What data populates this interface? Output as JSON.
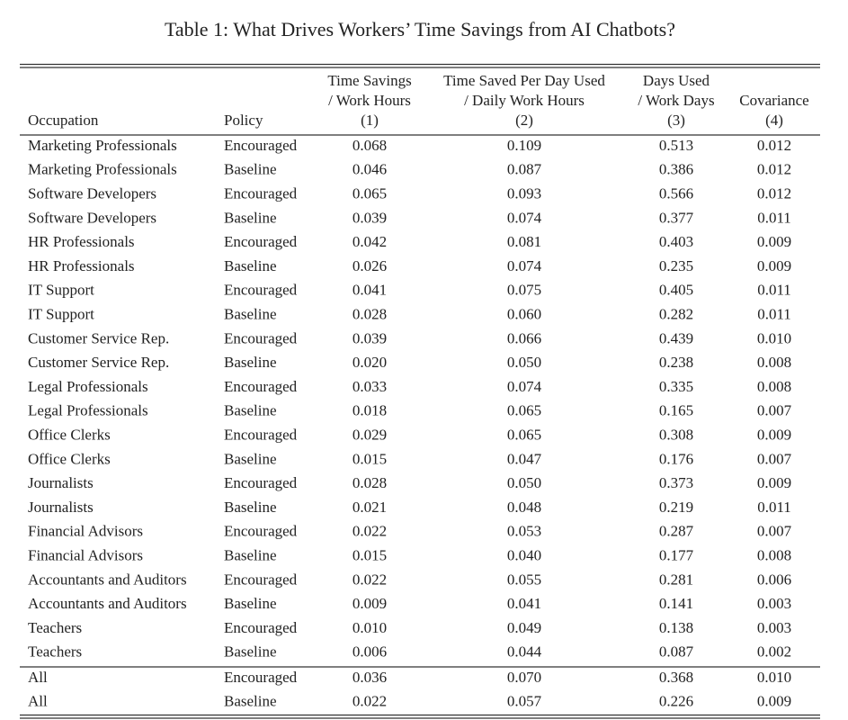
{
  "title": "Table 1: What Drives Workers’ Time Savings from AI Chatbots?",
  "table": {
    "header": {
      "occupation": "Occupation",
      "policy": "Policy",
      "columns": [
        [
          "Time Savings",
          "/ Work Hours",
          "(1)"
        ],
        [
          "Time Saved Per Day Used",
          "/ Daily Work Hours",
          "(2)"
        ],
        [
          "Days Used",
          "/ Work Days",
          "(3)"
        ],
        [
          "Covariance",
          "(4)"
        ]
      ]
    },
    "rows": [
      [
        "Marketing Professionals",
        "Encouraged",
        "0.068",
        "0.109",
        "0.513",
        "0.012"
      ],
      [
        "Marketing Professionals",
        "Baseline",
        "0.046",
        "0.087",
        "0.386",
        "0.012"
      ],
      [
        "Software Developers",
        "Encouraged",
        "0.065",
        "0.093",
        "0.566",
        "0.012"
      ],
      [
        "Software Developers",
        "Baseline",
        "0.039",
        "0.074",
        "0.377",
        "0.011"
      ],
      [
        "HR Professionals",
        "Encouraged",
        "0.042",
        "0.081",
        "0.403",
        "0.009"
      ],
      [
        "HR Professionals",
        "Baseline",
        "0.026",
        "0.074",
        "0.235",
        "0.009"
      ],
      [
        "IT Support",
        "Encouraged",
        "0.041",
        "0.075",
        "0.405",
        "0.011"
      ],
      [
        "IT Support",
        "Baseline",
        "0.028",
        "0.060",
        "0.282",
        "0.011"
      ],
      [
        "Customer Service Rep.",
        "Encouraged",
        "0.039",
        "0.066",
        "0.439",
        "0.010"
      ],
      [
        "Customer Service Rep.",
        "Baseline",
        "0.020",
        "0.050",
        "0.238",
        "0.008"
      ],
      [
        "Legal Professionals",
        "Encouraged",
        "0.033",
        "0.074",
        "0.335",
        "0.008"
      ],
      [
        "Legal Professionals",
        "Baseline",
        "0.018",
        "0.065",
        "0.165",
        "0.007"
      ],
      [
        "Office Clerks",
        "Encouraged",
        "0.029",
        "0.065",
        "0.308",
        "0.009"
      ],
      [
        "Office Clerks",
        "Baseline",
        "0.015",
        "0.047",
        "0.176",
        "0.007"
      ],
      [
        "Journalists",
        "Encouraged",
        "0.028",
        "0.050",
        "0.373",
        "0.009"
      ],
      [
        "Journalists",
        "Baseline",
        "0.021",
        "0.048",
        "0.219",
        "0.011"
      ],
      [
        "Financial Advisors",
        "Encouraged",
        "0.022",
        "0.053",
        "0.287",
        "0.007"
      ],
      [
        "Financial Advisors",
        "Baseline",
        "0.015",
        "0.040",
        "0.177",
        "0.008"
      ],
      [
        "Accountants and Auditors",
        "Encouraged",
        "0.022",
        "0.055",
        "0.281",
        "0.006"
      ],
      [
        "Accountants and Auditors",
        "Baseline",
        "0.009",
        "0.041",
        "0.141",
        "0.003"
      ],
      [
        "Teachers",
        "Encouraged",
        "0.010",
        "0.049",
        "0.138",
        "0.003"
      ],
      [
        "Teachers",
        "Baseline",
        "0.006",
        "0.044",
        "0.087",
        "0.002"
      ]
    ],
    "summary": [
      [
        "All",
        "Encouraged",
        "0.036",
        "0.070",
        "0.368",
        "0.010"
      ],
      [
        "All",
        "Baseline",
        "0.022",
        "0.057",
        "0.226",
        "0.009"
      ]
    ]
  }
}
